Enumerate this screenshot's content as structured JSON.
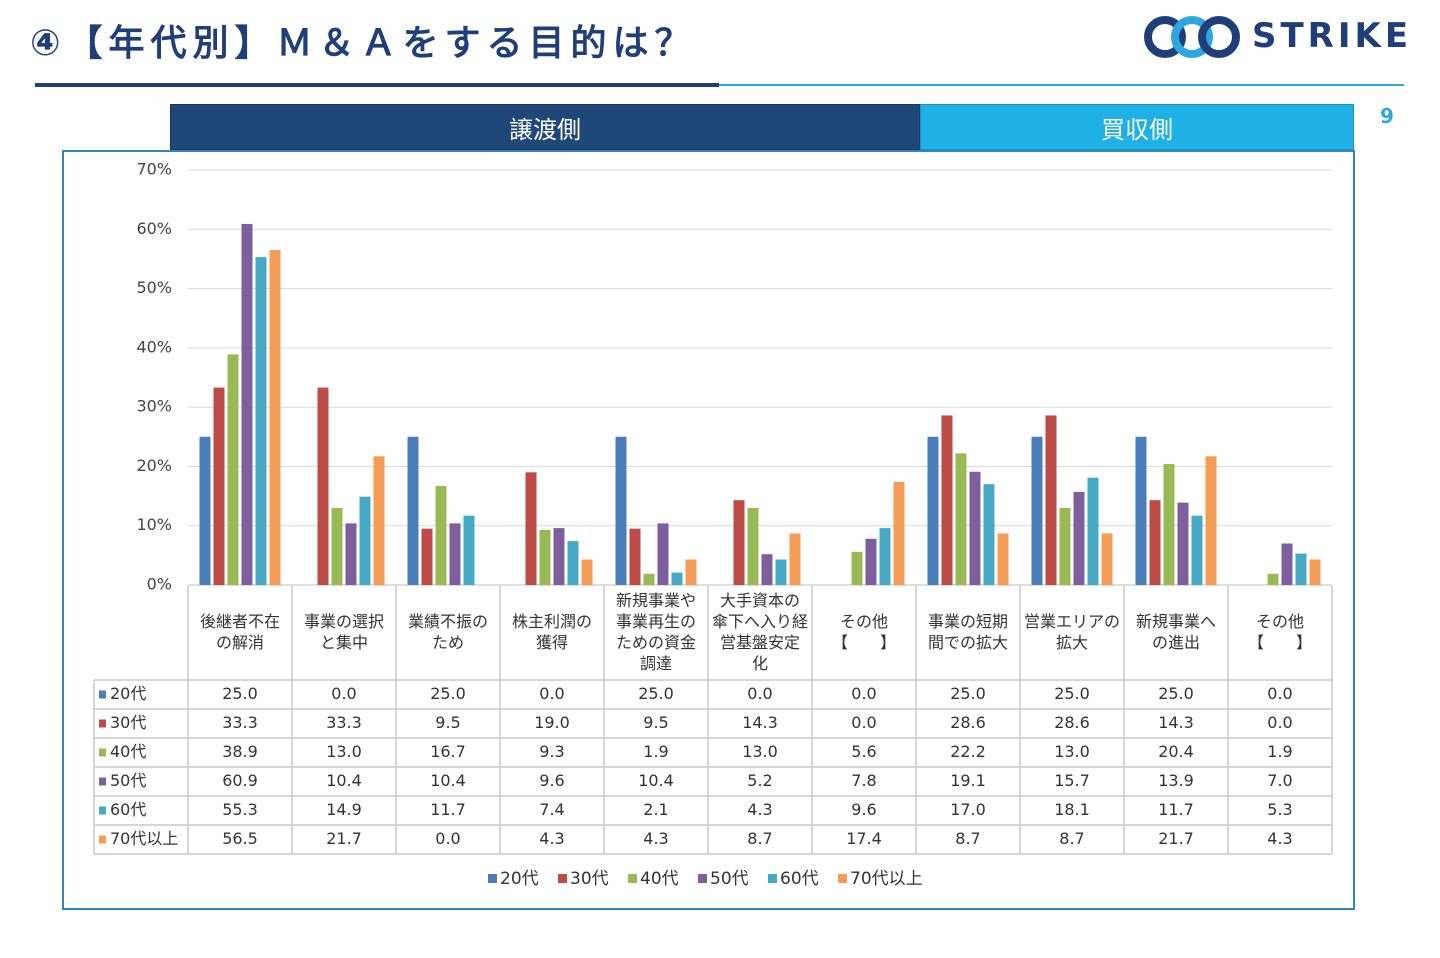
{
  "header": {
    "title": "④【年代別】Ｍ＆Ａをする目的は？",
    "logo_text": "STRIKE",
    "page_number": "9"
  },
  "sections": {
    "sell_side": "譲渡側",
    "buy_side": "買収側"
  },
  "colors": {
    "title": "#1f3e7a",
    "sell_header": "#1f4778",
    "buy_header": "#1fb1e6",
    "frame": "#2f86c0"
  },
  "chart_data": {
    "type": "bar",
    "ylim": [
      0,
      70
    ],
    "y_ticks": [
      "0%",
      "10%",
      "20%",
      "30%",
      "40%",
      "50%",
      "60%",
      "70%"
    ],
    "grid": true,
    "legend_position": "bottom",
    "categories": [
      [
        "後継者不在",
        "の解消"
      ],
      [
        "事業の選択",
        "と集中"
      ],
      [
        "業績不振の",
        "ため"
      ],
      [
        "株主利潤の",
        "獲得"
      ],
      [
        "新規事業や",
        "事業再生の",
        "ための資金",
        "調達"
      ],
      [
        "大手資本の",
        "傘下へ入り経",
        "営基盤安定",
        "化"
      ],
      [
        "その他",
        "【　　】"
      ],
      [
        "事業の短期",
        "間での拡大"
      ],
      [
        "営業エリアの",
        "拡大"
      ],
      [
        "新規事業へ",
        "の進出"
      ],
      [
        "その他",
        "【　　】"
      ]
    ],
    "series": [
      {
        "name": "20代",
        "color": "#4a7ebb",
        "values": [
          25.0,
          0.0,
          25.0,
          0.0,
          25.0,
          0.0,
          0.0,
          25.0,
          25.0,
          25.0,
          0.0
        ],
        "labels": [
          "25.0",
          "0.0",
          "25.0",
          "0.0",
          "25.0",
          "0.0",
          "0.0",
          "25.0",
          "25.0",
          "25.0",
          "0.0"
        ]
      },
      {
        "name": "30代",
        "color": "#be4b48",
        "values": [
          33.3,
          33.3,
          9.5,
          19.0,
          9.5,
          14.3,
          0.0,
          28.6,
          28.6,
          14.3,
          0.0
        ],
        "labels": [
          "33.3",
          "33.3",
          "9.5",
          "19.0",
          "9.5",
          "14.3",
          "0.0",
          "28.6",
          "28.6",
          "14.3",
          "0.0"
        ]
      },
      {
        "name": "40代",
        "color": "#98b954",
        "values": [
          38.9,
          13.0,
          16.7,
          9.3,
          1.9,
          13.0,
          5.6,
          22.2,
          13.0,
          20.4,
          1.9
        ],
        "labels": [
          "38.9",
          "13.0",
          "16.7",
          "9.3",
          "1.9",
          "13.0",
          "5.6",
          "22.2",
          "13.0",
          "20.4",
          "1.9"
        ]
      },
      {
        "name": "50代",
        "color": "#7d5fa0",
        "values": [
          60.9,
          10.4,
          10.4,
          9.6,
          10.4,
          5.2,
          7.8,
          19.1,
          15.7,
          13.9,
          7.0
        ],
        "labels": [
          "60.9",
          "10.4",
          "10.4",
          "9.6",
          "10.4",
          "5.2",
          "7.8",
          "19.1",
          "15.7",
          "13.9",
          "7.0"
        ]
      },
      {
        "name": "60代",
        "color": "#46aac5",
        "values": [
          55.3,
          14.9,
          11.7,
          7.4,
          2.1,
          4.3,
          9.6,
          17.0,
          18.1,
          11.7,
          5.3
        ],
        "labels": [
          "55.3",
          "14.9",
          "11.7",
          "7.4",
          "2.1",
          "4.3",
          "9.6",
          "17.0",
          "18.1",
          "11.7",
          "5.3"
        ]
      },
      {
        "name": "70代以上",
        "color": "#f59d56",
        "values": [
          56.5,
          21.7,
          0.0,
          4.3,
          4.3,
          8.7,
          17.4,
          8.7,
          8.7,
          21.7,
          4.3
        ],
        "labels": [
          "56.5",
          "21.7",
          "0.0",
          "4.3",
          "4.3",
          "8.7",
          "17.4",
          "8.7",
          "8.7",
          "21.7",
          "4.3"
        ]
      }
    ]
  }
}
